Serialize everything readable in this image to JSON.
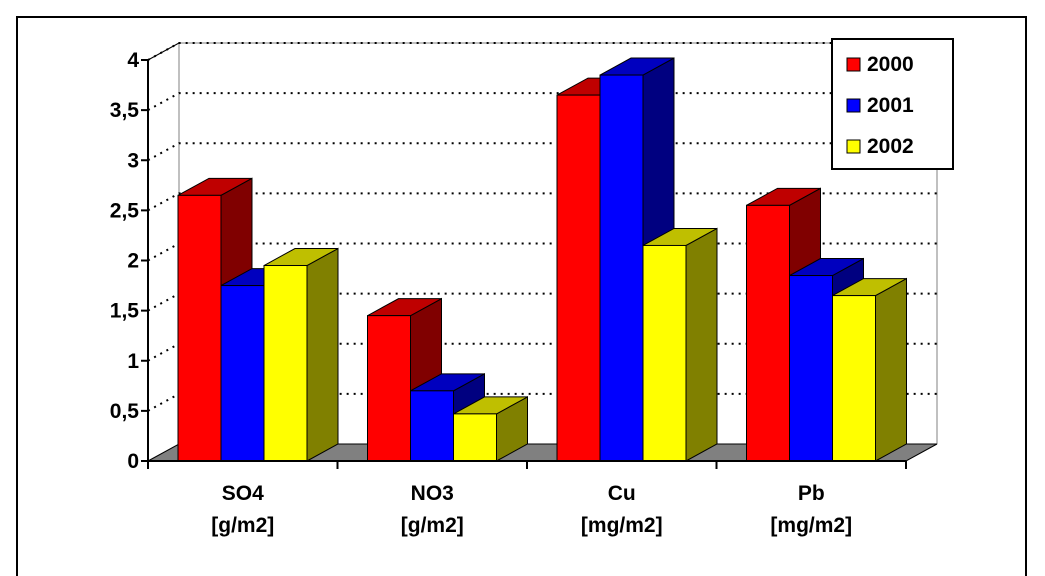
{
  "chart_data": {
    "type": "bar",
    "subtype": "3d-clustered-column",
    "categories": [
      [
        "SO4",
        "[g/m2]"
      ],
      [
        "NO3",
        "[g/m2]"
      ],
      [
        "Cu",
        "[mg/m2]"
      ],
      [
        "Pb",
        "[mg/m2]"
      ]
    ],
    "series": [
      {
        "name": "2000",
        "color": "#ff0000",
        "values": [
          2.65,
          1.45,
          3.65,
          2.55
        ]
      },
      {
        "name": "2001",
        "color": "#0000ff",
        "values": [
          1.75,
          0.7,
          3.85,
          1.85
        ]
      },
      {
        "name": "2002",
        "color": "#ffff00",
        "values": [
          1.95,
          0.47,
          2.15,
          1.65
        ]
      }
    ],
    "ylim": [
      0,
      4
    ],
    "yticks": [
      0,
      0.5,
      1,
      1.5,
      2,
      2.5,
      3,
      3.5,
      4
    ],
    "ytick_labels": [
      "0",
      "0,5",
      "1",
      "1,5",
      "2",
      "2,5",
      "3",
      "3,5",
      "4"
    ],
    "grid": "dotted horizontal",
    "legend_position": "top-right",
    "title": "",
    "xlabel": "",
    "ylabel": ""
  }
}
